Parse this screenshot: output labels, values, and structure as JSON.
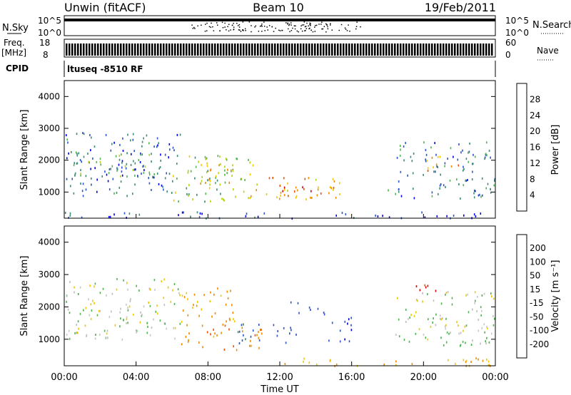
{
  "header": {
    "station": "Unwin (fitACF)",
    "beam": "Beam 10",
    "date": "19/Feb/2011"
  },
  "param_panels": {
    "nsky_label": "N.Sky",
    "nsky_top": "10^5",
    "nsky_bottom": "10^0",
    "nsearch_label": "N.Search",
    "freq_label": "Freq.",
    "freq_unit": "[MHz]",
    "freq_top": "18",
    "freq_bottom": "8",
    "nave_top": "60",
    "nave_bottom": "0",
    "nave_label": "Nave",
    "cpid_label": "CPID",
    "cpid_text": "ltuseq -8510 RF"
  },
  "colors": {
    "power_scale": [
      "#0000f0",
      "#2a55c8",
      "#3c8c78",
      "#50b450",
      "#b4d214",
      "#f0c800",
      "#f08c00",
      "#f05000",
      "#e00000"
    ],
    "velocity_scale": [
      "#e00000",
      "#f05000",
      "#f08c00",
      "#f0c800",
      "#bebebe",
      "#c8c8c8",
      "#50b450",
      "#3c8c78",
      "#2a55c8",
      "#0000c8"
    ]
  },
  "chart_data": [
    {
      "type": "heatmap",
      "name": "power",
      "ylabel": "Slant Range [km]",
      "xlabel": "",
      "ylim": [
        180,
        4500
      ],
      "yticks": [
        "1000",
        "2000",
        "3000",
        "4000"
      ],
      "colorbar_label": "Power [dB]",
      "colorbar_ticks": [
        "4",
        "8",
        "12",
        "16",
        "20",
        "24",
        "28"
      ],
      "colorbar_range": [
        0,
        32
      ],
      "bands": [
        {
          "t0": 0.0,
          "t1": 6.5,
          "r0": 900,
          "r1": 2900,
          "value": 6
        },
        {
          "t0": 0.5,
          "t1": 5.5,
          "r0": 1500,
          "r1": 2300,
          "value": 12
        },
        {
          "t0": 6.0,
          "t1": 10.5,
          "r0": 700,
          "r1": 2200,
          "value": 14
        },
        {
          "t0": 7.0,
          "t1": 9.5,
          "r0": 1300,
          "r1": 2000,
          "value": 20
        },
        {
          "t0": 10.0,
          "t1": 15.5,
          "r0": 800,
          "r1": 1500,
          "value": 22
        },
        {
          "t0": 12.0,
          "t1": 15.0,
          "r0": 900,
          "r1": 1200,
          "value": 28
        },
        {
          "t0": 18.0,
          "t1": 18.8,
          "r0": 900,
          "r1": 1200,
          "value": 8
        },
        {
          "t0": 18.5,
          "t1": 24.0,
          "r0": 800,
          "r1": 2600,
          "value": 8
        },
        {
          "t0": 20.0,
          "t1": 22.0,
          "r0": 1700,
          "r1": 2200,
          "value": 22
        },
        {
          "t0": 0.0,
          "t1": 24.0,
          "r0": 200,
          "r1": 400,
          "value": 4
        }
      ]
    },
    {
      "type": "heatmap",
      "name": "velocity",
      "ylabel": "Slant Range [km]",
      "xlabel": "Time UT",
      "ylim": [
        180,
        4500
      ],
      "yticks": [
        "1000",
        "2000",
        "3000",
        "4000"
      ],
      "xticks": [
        "00:00",
        "04:00",
        "08:00",
        "12:00",
        "16:00",
        "20:00",
        "00:00"
      ],
      "colorbar_label": "Velocity [m s⁻¹]",
      "colorbar_ticks": [
        "-200",
        "-100",
        "-50",
        "-15",
        "15",
        "50",
        "100",
        "200"
      ],
      "colorbar_range": [
        -250,
        250
      ],
      "bands": [
        {
          "t0": 0.0,
          "t1": 6.5,
          "r0": 1000,
          "r1": 2900,
          "value": 0
        },
        {
          "t0": 6.5,
          "t1": 11.0,
          "r0": 700,
          "r1": 1500,
          "value": -80
        },
        {
          "t0": 6.5,
          "t1": 9.5,
          "r0": 1500,
          "r1": 2600,
          "value": -60
        },
        {
          "t0": 9.5,
          "t1": 13.0,
          "r0": 900,
          "r1": 1500,
          "value": 120
        },
        {
          "t0": 12.5,
          "t1": 14.5,
          "r0": 1800,
          "r1": 2200,
          "value": 150
        },
        {
          "t0": 14.5,
          "t1": 16.0,
          "r0": 900,
          "r1": 1700,
          "value": 200
        },
        {
          "t0": 18.0,
          "t1": 18.8,
          "r0": 900,
          "r1": 1200,
          "value": 30
        },
        {
          "t0": 18.5,
          "t1": 24.0,
          "r0": 800,
          "r1": 2500,
          "value": 0
        },
        {
          "t0": 19.5,
          "t1": 21.0,
          "r0": 2400,
          "r1": 2800,
          "value": -200
        },
        {
          "t0": 12.0,
          "t1": 24.0,
          "r0": 200,
          "r1": 450,
          "value": -60
        }
      ]
    }
  ]
}
